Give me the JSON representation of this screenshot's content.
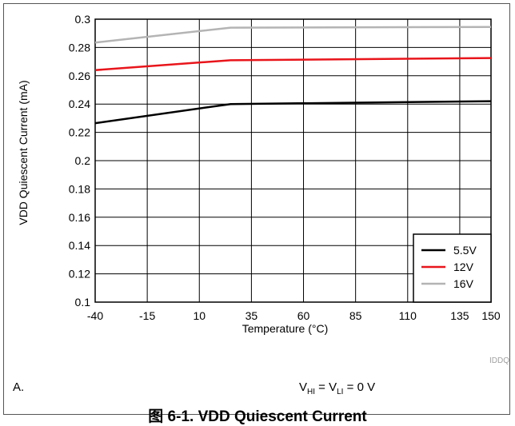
{
  "chart_data": {
    "type": "line",
    "xlabel": "Temperature (°C)",
    "ylabel": "VDD Quiescent Current (mA)",
    "xlim": [
      -40,
      150
    ],
    "ylim": [
      0.1,
      0.3
    ],
    "xticks": [
      -40,
      -15,
      10,
      35,
      60,
      85,
      110,
      135,
      150
    ],
    "xtick_labels": [
      "-40",
      "-15",
      "10",
      "35",
      "60",
      "85",
      "110",
      "135",
      "150"
    ],
    "yticks": [
      0.1,
      0.12,
      0.14,
      0.16,
      0.18,
      0.2,
      0.22,
      0.24,
      0.26,
      0.28,
      0.3
    ],
    "ytick_labels": [
      "0.1",
      "0.12",
      "0.14",
      "0.16",
      "0.18",
      "0.2",
      "0.22",
      "0.24",
      "0.26",
      "0.28",
      "0.3"
    ],
    "grid": true,
    "legend_position": "bottom-right",
    "series": [
      {
        "name": "5.5V",
        "color": "#000000",
        "x": [
          -40,
          25,
          150
        ],
        "y": [
          0.2265,
          0.24,
          0.242
        ]
      },
      {
        "name": "12V",
        "color": "#e8151b",
        "x": [
          -40,
          25,
          150
        ],
        "y": [
          0.264,
          0.271,
          0.2725
        ]
      },
      {
        "name": "16V",
        "color": "#b4b4b4",
        "x": [
          -40,
          25,
          150
        ],
        "y": [
          0.2835,
          0.294,
          0.2945
        ]
      }
    ]
  },
  "watermark": "IDDQ",
  "note": {
    "label": "A.",
    "v1": "V",
    "v1_sub": "HI",
    "eq1": " = V",
    "v2_sub": "LI",
    "eq2": " = 0 V"
  },
  "caption": "图 6-1. VDD Quiescent Current"
}
